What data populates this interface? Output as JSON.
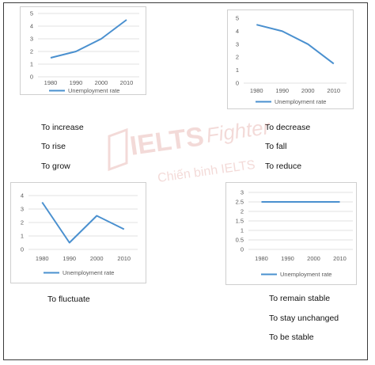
{
  "colors": {
    "series": "#4a90cf",
    "grid": "#d9d9d9",
    "watermark": "#c0392b"
  },
  "watermark": {
    "brand": "IELTS",
    "brand_script": "Fighter",
    "tagline": "Chiến binh IELTS"
  },
  "chart_data": [
    {
      "type": "line",
      "x": [
        "1980",
        "1990",
        "2000",
        "2010"
      ],
      "series": [
        {
          "name": "Unemployment rate",
          "values": [
            1.5,
            2,
            3,
            4.5
          ]
        }
      ],
      "yticks": [
        "0",
        "1",
        "2",
        "3",
        "4",
        "5"
      ],
      "ylim": [
        0,
        5
      ],
      "grid": true,
      "legend": "bottom",
      "title": "",
      "xlabel": "",
      "ylabel": ""
    },
    {
      "type": "line",
      "x": [
        "1980",
        "1990",
        "2000",
        "2010"
      ],
      "series": [
        {
          "name": "Unemployment rate",
          "values": [
            4.5,
            4,
            3,
            1.5
          ]
        }
      ],
      "yticks": [
        "0",
        "1",
        "2",
        "3",
        "4",
        "5"
      ],
      "ylim": [
        0,
        5
      ],
      "grid": false,
      "legend": "bottom",
      "title": "",
      "xlabel": "",
      "ylabel": ""
    },
    {
      "type": "line",
      "x": [
        "1980",
        "1990",
        "2000",
        "2010"
      ],
      "series": [
        {
          "name": "Unemployment rate",
          "values": [
            3.5,
            0.5,
            2.5,
            1.5
          ]
        }
      ],
      "yticks": [
        "0",
        "1",
        "2",
        "3",
        "4"
      ],
      "ylim": [
        0,
        4
      ],
      "grid": true,
      "legend": "bottom",
      "title": "",
      "xlabel": "",
      "ylabel": ""
    },
    {
      "type": "line",
      "x": [
        "1980",
        "1990",
        "2000",
        "2010"
      ],
      "series": [
        {
          "name": "Unemployment rate",
          "values": [
            2.5,
            2.5,
            2.5,
            2.5
          ]
        }
      ],
      "yticks": [
        "0",
        "0.5",
        "1",
        "1.5",
        "2",
        "2.5",
        "3"
      ],
      "ylim": [
        0,
        3
      ],
      "grid": true,
      "legend": "bottom",
      "title": "",
      "xlabel": "",
      "ylabel": ""
    }
  ],
  "captions": {
    "increase": [
      "To increase",
      "To rise",
      "To grow"
    ],
    "decrease": [
      "To decrease",
      "To fall",
      "To reduce"
    ],
    "fluctuate": [
      "To fluctuate"
    ],
    "stable": [
      "To remain stable",
      "To stay unchanged",
      "To be stable"
    ]
  }
}
